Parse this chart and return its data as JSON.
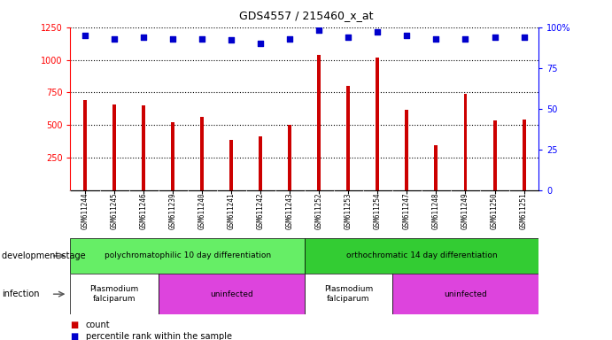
{
  "title": "GDS4557 / 215460_x_at",
  "samples": [
    "GSM611244",
    "GSM611245",
    "GSM611246",
    "GSM611239",
    "GSM611240",
    "GSM611241",
    "GSM611242",
    "GSM611243",
    "GSM611252",
    "GSM611253",
    "GSM611254",
    "GSM611247",
    "GSM611248",
    "GSM611249",
    "GSM611250",
    "GSM611251"
  ],
  "counts": [
    695,
    660,
    650,
    525,
    560,
    390,
    415,
    505,
    1040,
    800,
    1015,
    620,
    345,
    740,
    535,
    540
  ],
  "percentile_ranks": [
    95,
    93,
    94,
    93,
    93,
    92,
    90,
    93,
    98,
    94,
    97,
    95,
    93,
    93,
    94,
    94
  ],
  "ylim_left": [
    0,
    1250
  ],
  "ylim_right": [
    0,
    100
  ],
  "yticks_left": [
    250,
    500,
    750,
    1000,
    1250
  ],
  "yticks_right": [
    0,
    25,
    50,
    75,
    100
  ],
  "bar_color": "#cc0000",
  "dot_color": "#0000cc",
  "background_color": "#ffffff",
  "xticklabel_bg": "#d0d0d0",
  "dev_stage_groups": [
    {
      "label": "polychromatophilic 10 day differentiation",
      "start": 0,
      "end": 8,
      "color": "#66ee66"
    },
    {
      "label": "orthochromatic 14 day differentiation",
      "start": 8,
      "end": 16,
      "color": "#33cc33"
    }
  ],
  "infection_groups": [
    {
      "label": "Plasmodium\nfalciparum",
      "start": 0,
      "end": 3,
      "color": "#ffffff"
    },
    {
      "label": "uninfected",
      "start": 3,
      "end": 8,
      "color": "#dd44dd"
    },
    {
      "label": "Plasmodium\nfalciparum",
      "start": 8,
      "end": 11,
      "color": "#ffffff"
    },
    {
      "label": "uninfected",
      "start": 11,
      "end": 16,
      "color": "#dd44dd"
    }
  ],
  "legend_count_label": "count",
  "legend_percentile_label": "percentile rank within the sample",
  "dev_stage_label": "development stage",
  "infection_label": "infection"
}
